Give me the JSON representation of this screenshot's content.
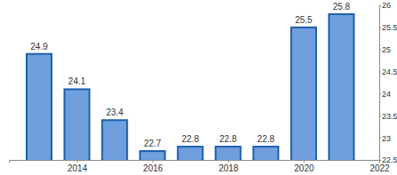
{
  "chart_data": {
    "type": "bar",
    "x": [
      2013,
      2014,
      2015,
      2016,
      2017,
      2018,
      2019,
      2020,
      2021
    ],
    "values": [
      24.9,
      24.1,
      23.4,
      22.7,
      22.8,
      22.8,
      22.8,
      25.5,
      25.8
    ],
    "color": "#6f9fdc",
    "xlim": [
      2012.2,
      2022
    ],
    "xticks": [
      2014,
      2016,
      2018,
      2020,
      2022
    ],
    "ylim": [
      22.5,
      26
    ],
    "yticks": [
      22.5,
      23,
      23.5,
      24,
      24.5,
      25,
      25.5,
      26
    ],
    "grid": false,
    "data_labels": true
  }
}
